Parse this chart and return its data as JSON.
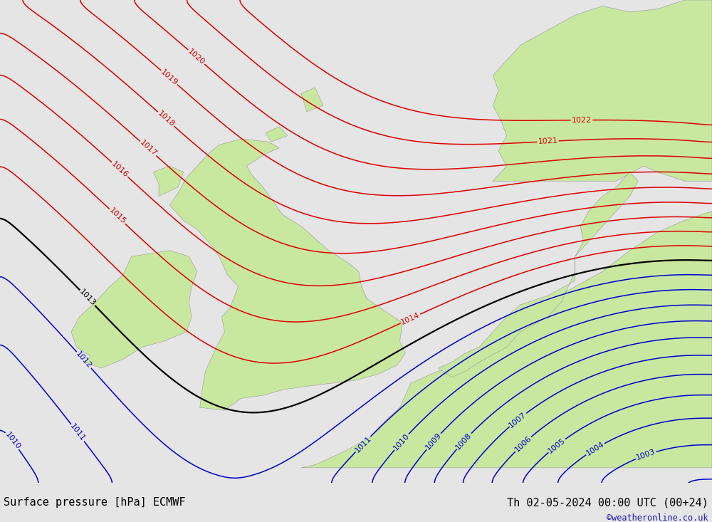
{
  "title_left": "Surface pressure [hPa] ECMWF",
  "title_right": "Th 02-05-2024 00:00 UTC (00+24)",
  "watermark": "©weatheronline.co.uk",
  "background_color": "#e5e5e5",
  "land_color": "#c8e8a0",
  "sea_color": "#e5e5e5",
  "red_contour_color": "#dd0000",
  "blue_contour_color": "#0000cc",
  "black_contour_color": "#000000",
  "font_size_labels": 8,
  "font_size_title": 11,
  "lon_min": -13.0,
  "lon_max": 13.0,
  "lat_min": 47.5,
  "lat_max": 63.5,
  "pressure_base": 1013.0
}
